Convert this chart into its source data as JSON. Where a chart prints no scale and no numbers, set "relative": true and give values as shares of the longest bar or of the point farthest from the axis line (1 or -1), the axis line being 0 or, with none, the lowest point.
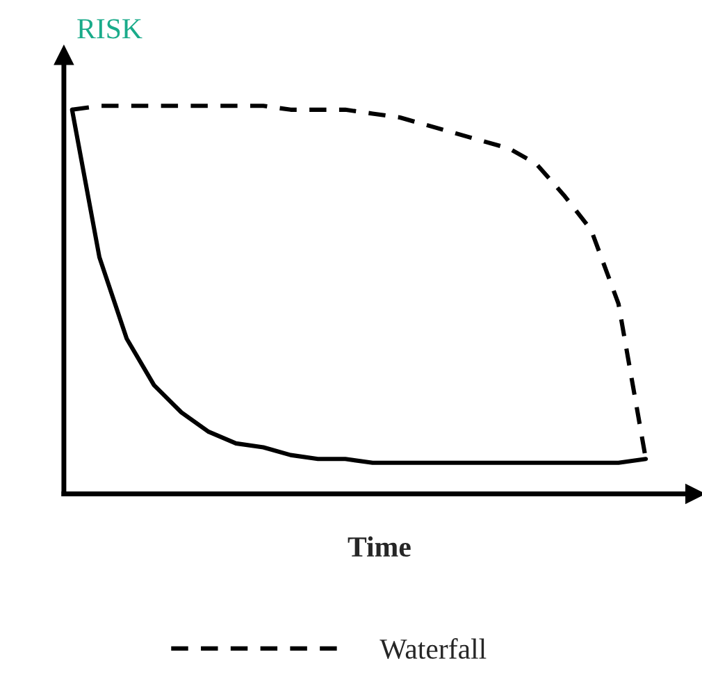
{
  "chart_data": {
    "type": "line",
    "relative": true,
    "ylabel": "RISK",
    "xlabel": "Time",
    "categories": [
      null,
      null,
      null,
      null,
      null,
      null,
      null,
      null,
      null,
      null,
      null,
      null,
      null,
      null,
      null,
      null,
      null,
      null,
      null,
      null,
      null,
      null
    ],
    "series": [
      {
        "name": "Waterfall",
        "color": "#000000",
        "line_style": "dashed",
        "values": [
          0.99,
          1,
          1,
          1,
          1,
          1,
          1,
          1,
          0.99,
          0.99,
          0.99,
          0.98,
          0.97,
          0.95,
          0.93,
          0.91,
          0.89,
          0.85,
          0.77,
          0.68,
          0.49,
          0.09
        ]
      },
      {
        "color": "#000000",
        "line_style": "solid",
        "values": [
          0.99,
          0.61,
          0.4,
          0.28,
          0.21,
          0.16,
          0.13,
          0.12,
          0.1,
          0.09,
          0.09,
          0.08,
          0.08,
          0.08,
          0.08,
          0.08,
          0.08,
          0.08,
          0.08,
          0.08,
          0.08,
          0.09
        ]
      }
    ],
    "legend": "bottom",
    "marker": "none"
  }
}
